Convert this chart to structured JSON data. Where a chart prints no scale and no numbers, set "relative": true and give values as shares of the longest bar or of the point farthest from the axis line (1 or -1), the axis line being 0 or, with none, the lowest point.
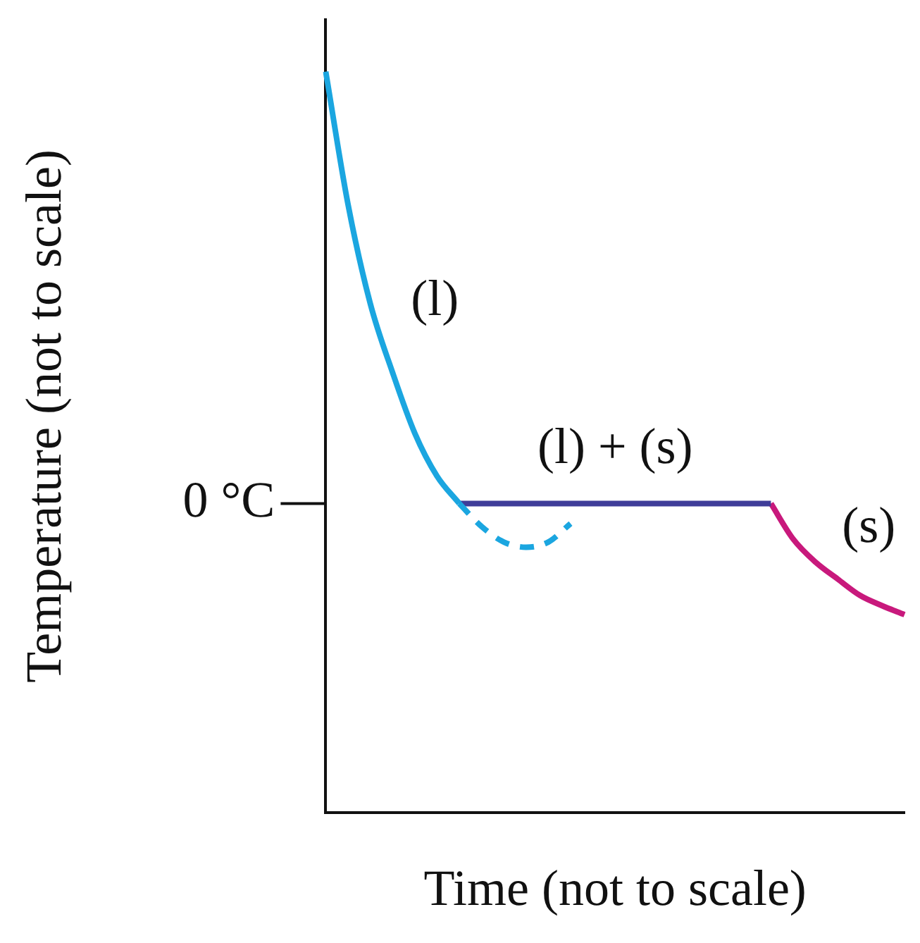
{
  "chart_data": {
    "type": "line",
    "relative": true,
    "xlabel": "Time (not to scale)",
    "ylabel": "Temperature (not to scale)",
    "categories": [
      null,
      null,
      null,
      null,
      null,
      null,
      null,
      null,
      null,
      null,
      null,
      null,
      null,
      null,
      null,
      null,
      null,
      null,
      null,
      null,
      null,
      null,
      null,
      null,
      null,
      null,
      null
    ],
    "ref_lines": [
      {
        "axis": "y",
        "value": 0.417,
        "label": "0 °C"
      }
    ],
    "grid": false,
    "legend": false,
    "marker": "none",
    "series": [
      {
        "name": "(l)",
        "color": "#1ba6e0",
        "values": [
          1.0,
          0.821,
          0.687,
          0.594,
          0.512,
          0.454,
          0.417,
          null,
          null,
          null,
          null,
          null,
          null,
          null,
          null,
          null,
          null,
          null,
          null,
          null,
          null,
          null,
          null,
          null,
          null,
          null,
          null
        ]
      },
      {
        "color": "#1ba6e0",
        "line_style": "dashed",
        "values": [
          null,
          null,
          null,
          null,
          null,
          null,
          0.417,
          0.386,
          0.365,
          0.358,
          0.365,
          0.39,
          null,
          null,
          null,
          null,
          null,
          null,
          null,
          null,
          null,
          null,
          null,
          null,
          null,
          null,
          null
        ]
      },
      {
        "name": "(l) + (s)",
        "color": "#3f3d99",
        "values": [
          null,
          null,
          null,
          null,
          null,
          null,
          0.417,
          0.417,
          0.417,
          0.417,
          0.417,
          0.417,
          0.417,
          0.417,
          0.417,
          0.417,
          0.417,
          0.417,
          0.417,
          0.417,
          0.417,
          null,
          null,
          null,
          null,
          null,
          null
        ]
      },
      {
        "name": "(s)",
        "color": "#c8197c",
        "values": [
          null,
          null,
          null,
          null,
          null,
          null,
          null,
          null,
          null,
          null,
          null,
          null,
          null,
          null,
          null,
          null,
          null,
          null,
          null,
          null,
          0.417,
          0.369,
          0.338,
          0.315,
          0.293,
          0.279,
          0.267
        ]
      }
    ]
  }
}
